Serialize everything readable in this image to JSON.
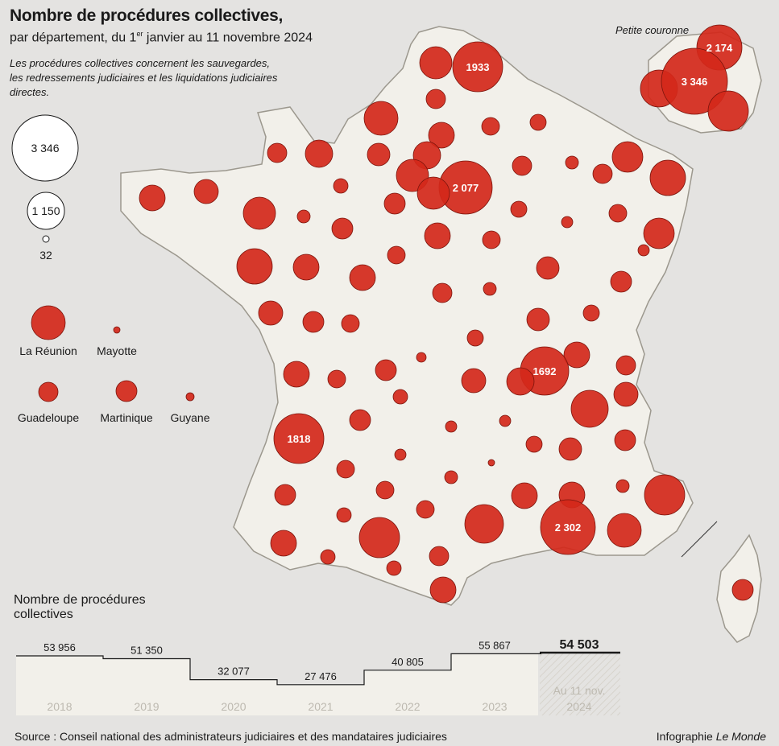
{
  "title": "Nombre de procédures collectives,",
  "subtitle_prefix": "par département, du 1",
  "subtitle_sup": "er",
  "subtitle_suffix": " janvier au 11 novembre 2024",
  "note": "Les procédures collectives concernent les sauvegardes, les redressements judiciaires et les liquidations judiciaires directes.",
  "petite_couronne_label": "Petite couronne",
  "size_legend": [
    {
      "label": "3 346",
      "value": 3346
    },
    {
      "label": "1 150",
      "value": 1150
    },
    {
      "label": "32",
      "value": 32
    }
  ],
  "overseas": [
    {
      "name": "La Réunion",
      "value": 1100
    },
    {
      "name": "Mayotte",
      "value": 60
    },
    {
      "name": "Guadeloupe",
      "value": 380
    },
    {
      "name": "Martinique",
      "value": 430
    },
    {
      "name": "Guyane",
      "value": 70
    }
  ],
  "labeled_departments": [
    {
      "name": "Nord",
      "label": "1933",
      "value": 1933
    },
    {
      "name": "Seine-et-Marne",
      "label": "2 077",
      "value": 2077
    },
    {
      "name": "Rhône",
      "label": "1692",
      "value": 1692
    },
    {
      "name": "Gironde",
      "label": "1818",
      "value": 1818
    },
    {
      "name": "Bouches-du-Rhône",
      "label": "2 302",
      "value": 2302
    },
    {
      "name": "Paris",
      "label": "3 346",
      "value": 3346
    },
    {
      "name": "Seine-Saint-Denis",
      "label": "2 174",
      "value": 2174
    }
  ],
  "timeline": {
    "title": "Nombre de procédures collectives",
    "years": [
      "2018",
      "2019",
      "2020",
      "2021",
      "2022",
      "2023"
    ],
    "values": [
      53956,
      51350,
      32077,
      27476,
      40805,
      55867
    ],
    "value_labels": [
      "53 956",
      "51 350",
      "32 077",
      "27 476",
      "40 805",
      "55 867"
    ],
    "current_value_label": "54 503",
    "current_period": [
      "Au 11 nov.",
      "2024"
    ]
  },
  "source": "Source : Conseil national des administrateurs judiciaires et des mandataires judiciaires",
  "credit_prefix": "Infographie ",
  "credit_brand": "Le Monde",
  "colors": {
    "bubble": "#d4281a",
    "bubble_stroke": "#7a140c",
    "land": "#f2f0ea",
    "background": "#e4e3e1"
  }
}
